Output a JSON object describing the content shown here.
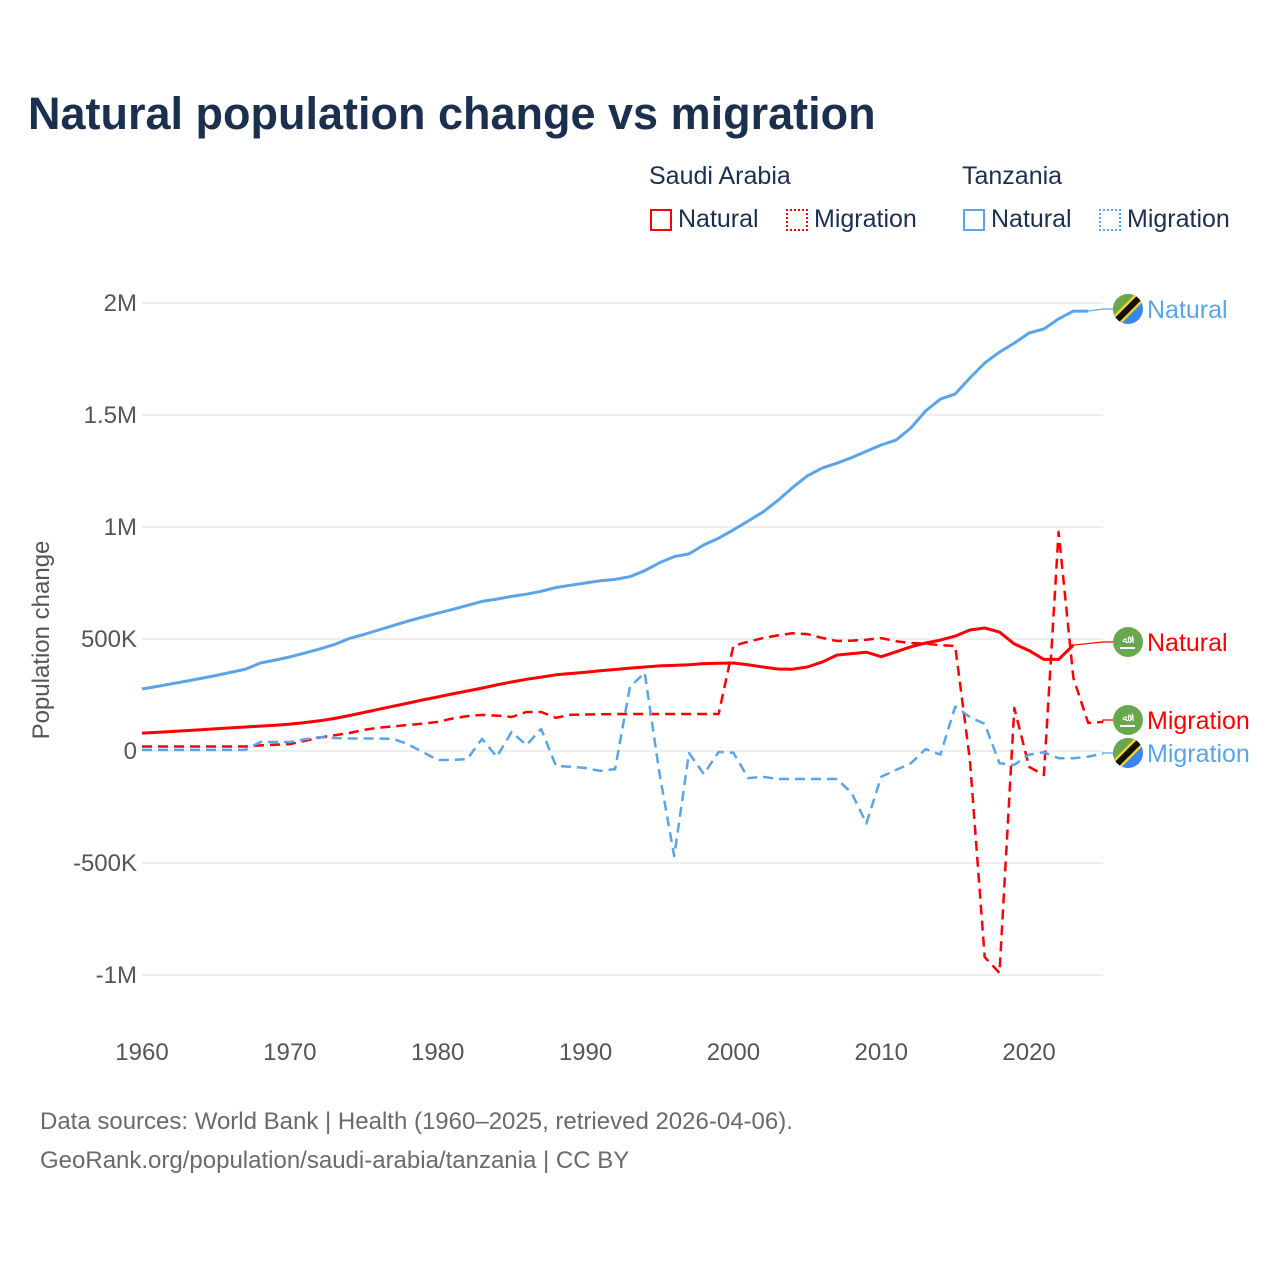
{
  "title": "Natural population change vs migration",
  "legend": {
    "groups": [
      {
        "country": "Saudi Arabia",
        "items": [
          {
            "label": "Natural",
            "style": "solid"
          },
          {
            "label": "Migration",
            "style": "dotted"
          }
        ],
        "color": "#ff0000"
      },
      {
        "country": "Tanzania",
        "items": [
          {
            "label": "Natural",
            "style": "solid"
          },
          {
            "label": "Migration",
            "style": "dotted"
          }
        ],
        "color": "#5ba4e8"
      }
    ]
  },
  "footer": {
    "line1": "Data sources: World Bank | Health (1960–2025, retrieved 2026-04-06).",
    "line2": "GeoRank.org/population/saudi-arabia/tanzania | CC BY"
  },
  "chart_data": {
    "type": "line",
    "title": "Natural population change vs migration",
    "xlabel": "",
    "ylabel": "Population change",
    "value_unit": "thousands",
    "xlim": [
      1960,
      2025
    ],
    "ylim": [
      -1000,
      2000
    ],
    "x_ticks": [
      1960,
      1970,
      1980,
      1990,
      2000,
      2010,
      2020
    ],
    "x_tick_labels": [
      "1960",
      "1970",
      "1980",
      "1990",
      "2000",
      "2010",
      "2020"
    ],
    "y_ticks": [
      2000,
      1500,
      1000,
      500,
      0,
      -500,
      -1000
    ],
    "y_tick_labels": [
      "2M",
      "1.5M",
      "1M",
      "500K",
      "0",
      "-500K",
      "-1M"
    ],
    "grid": true,
    "legend_position": "top-right",
    "x_start": 1960,
    "series": [
      {
        "name": "Tanzania Natural",
        "end_label": "Natural",
        "country": "Tanzania",
        "color": "#5ba4e8",
        "dash": false,
        "flag": "tanzania-flag",
        "values": [
          277,
          288,
          300,
          312,
          324,
          337,
          351,
          365,
          393,
          406,
          420,
          437,
          455,
          475,
          502,
          520,
          540,
          560,
          580,
          598,
          615,
          632,
          650,
          668,
          678,
          690,
          700,
          713,
          730,
          740,
          750,
          760,
          766,
          778,
          805,
          840,
          868,
          880,
          920,
          950,
          987,
          1027,
          1067,
          1118,
          1176,
          1228,
          1263,
          1285,
          1310,
          1338,
          1366,
          1388,
          1442,
          1518,
          1571,
          1594,
          1665,
          1732,
          1781,
          1821,
          1866,
          1884,
          1929,
          1964,
          1964,
          null
        ]
      },
      {
        "name": "Saudi Arabia Natural",
        "end_label": "Natural",
        "country": "Saudi Arabia",
        "color": "#ff0000",
        "dash": false,
        "flag": "saudi-arabia-flag",
        "values": [
          80,
          83,
          87,
          91,
          95,
          99,
          103,
          107,
          111,
          115,
          120,
          127,
          135,
          145,
          158,
          172,
          186,
          200,
          214,
          228,
          241,
          255,
          268,
          281,
          295,
          308,
          320,
          330,
          340,
          346,
          352,
          358,
          364,
          370,
          375,
          380,
          382,
          385,
          390,
          392,
          393,
          385,
          375,
          366,
          365,
          375,
          397,
          428,
          435,
          441,
          421,
          443,
          465,
          482,
          495,
          513,
          540,
          549,
          531,
          478,
          448,
          409,
          409,
          473,
          null,
          null
        ]
      },
      {
        "name": "Saudi Arabia Migration",
        "end_label": "Migration",
        "country": "Saudi Arabia",
        "color": "#ff0000",
        "dash": true,
        "flag": "saudi-arabia-flag",
        "values": [
          20,
          20,
          20,
          20,
          20,
          20,
          20,
          20,
          25,
          28,
          31,
          45,
          60,
          70,
          80,
          94,
          104,
          110,
          116,
          122,
          130,
          145,
          156,
          161,
          158,
          152,
          174,
          174,
          148,
          162,
          163,
          164,
          165,
          165,
          165,
          165,
          165,
          165,
          165,
          165,
          469,
          488,
          504,
          516,
          526,
          522,
          505,
          491,
          493,
          497,
          504,
          490,
          482,
          480,
          472,
          469,
          -40,
          -920,
          -991,
          192,
          -71,
          -107,
          978,
          326,
          125,
          130
        ]
      },
      {
        "name": "Tanzania Migration",
        "end_label": "Migration",
        "country": "Tanzania",
        "color": "#5ba4e8",
        "dash": true,
        "flag": "tanzania-flag",
        "values": [
          5,
          5,
          5,
          5,
          5,
          5,
          5,
          5,
          40,
          40,
          40,
          52,
          62,
          58,
          56,
          56,
          56,
          54,
          30,
          -5,
          -40,
          -40,
          -36,
          54,
          -26,
          85,
          27,
          98,
          -67,
          -70,
          -76,
          -89,
          -81,
          286,
          349,
          -100,
          -469,
          -9,
          -103,
          -4,
          -8,
          -121,
          -115,
          -125,
          -125,
          -125,
          -125,
          -125,
          -188,
          -323,
          -115,
          -85,
          -55,
          8,
          -16,
          198,
          152,
          121,
          -55,
          -62,
          -16,
          -6,
          -32,
          -32,
          -25,
          -12
        ]
      }
    ],
    "end_labels_order": [
      "Tanzania Natural",
      "Saudi Arabia Natural",
      "Saudi Arabia Migration",
      "Tanzania Migration"
    ]
  }
}
